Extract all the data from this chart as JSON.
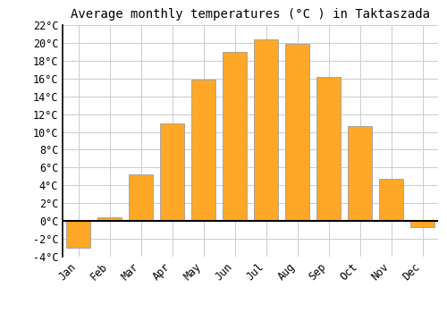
{
  "title": "Average monthly temperatures (°C ) in Taktaszada",
  "months": [
    "Jan",
    "Feb",
    "Mar",
    "Apr",
    "May",
    "Jun",
    "Jul",
    "Aug",
    "Sep",
    "Oct",
    "Nov",
    "Dec"
  ],
  "values": [
    -3.0,
    0.4,
    5.2,
    11.0,
    15.9,
    19.0,
    20.4,
    19.9,
    16.2,
    10.7,
    4.7,
    -0.7
  ],
  "bar_color": "#FFA726",
  "bar_edge_color": "#9E9E9E",
  "ylim": [
    -4,
    22
  ],
  "yticks": [
    -4,
    -2,
    0,
    2,
    4,
    6,
    8,
    10,
    12,
    14,
    16,
    18,
    20,
    22
  ],
  "background_color": "#ffffff",
  "grid_color": "#cccccc",
  "title_fontsize": 10,
  "tick_fontsize": 8.5,
  "zero_line_color": "#000000",
  "fig_width": 5.0,
  "fig_height": 3.5,
  "dpi": 100
}
